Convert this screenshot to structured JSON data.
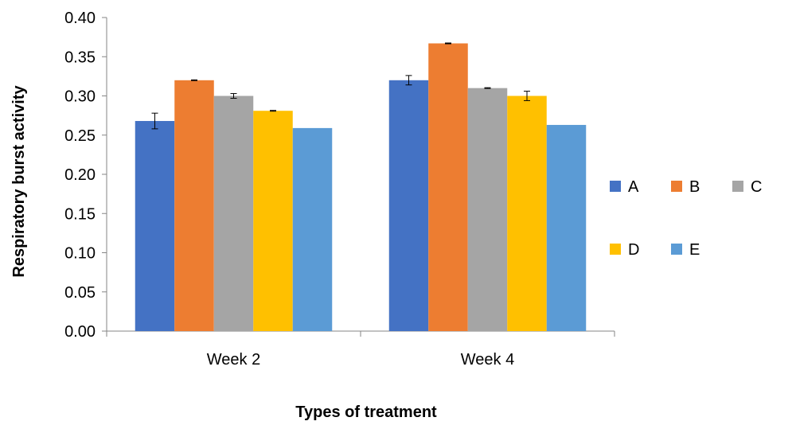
{
  "chart_data": {
    "type": "bar",
    "title": "",
    "xlabel": "Types of treatment",
    "ylabel": "Respiratory burst activity",
    "ylim": [
      0,
      0.4
    ],
    "y_ticks": [
      "0.00",
      "0.05",
      "0.10",
      "0.15",
      "0.20",
      "0.25",
      "0.30",
      "0.35",
      "0.40"
    ],
    "categories": [
      "Week 2",
      "Week 4"
    ],
    "grid": false,
    "legend_position": "right",
    "series": [
      {
        "name": "A",
        "color": "#4472C4",
        "values": [
          0.268,
          0.32
        ],
        "errors": [
          0.01,
          0.006
        ]
      },
      {
        "name": "B",
        "color": "#ED7D31",
        "values": [
          0.32,
          0.367
        ],
        "errors": [
          0.0005,
          0.0005
        ]
      },
      {
        "name": "C",
        "color": "#A5A5A5",
        "values": [
          0.3,
          0.31
        ],
        "errors": [
          0.003,
          0.0005
        ]
      },
      {
        "name": "D",
        "color": "#FFC000",
        "values": [
          0.281,
          0.3
        ],
        "errors": [
          0.0005,
          0.006
        ]
      },
      {
        "name": "E",
        "color": "#5B9BD5",
        "values": [
          0.259,
          0.263
        ],
        "errors": [
          0,
          0
        ]
      }
    ]
  }
}
